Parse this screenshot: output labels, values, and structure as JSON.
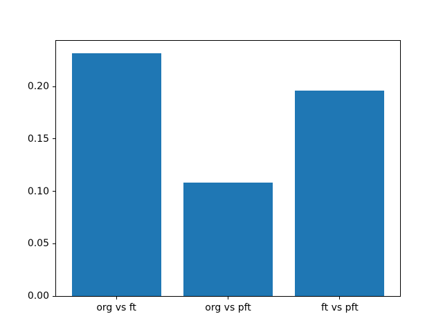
{
  "chart_data": {
    "type": "bar",
    "categories": [
      "org vs ft",
      "org vs pft",
      "ft vs pft"
    ],
    "values": [
      0.232,
      0.108,
      0.196
    ],
    "title": "",
    "xlabel": "",
    "ylabel": "",
    "ylim": [
      0,
      0.2436
    ],
    "xlim": [
      -0.54,
      2.54
    ],
    "yticks": [
      0.0,
      0.05,
      0.1,
      0.15,
      0.2
    ],
    "ytick_labels": [
      "0.00",
      "0.05",
      "0.10",
      "0.15",
      "0.20"
    ],
    "bar_width": 0.8,
    "bar_color": "#1f77b4",
    "grid": false,
    "legend": "none",
    "spine_color": "#000000",
    "background_color": "#ffffff"
  }
}
